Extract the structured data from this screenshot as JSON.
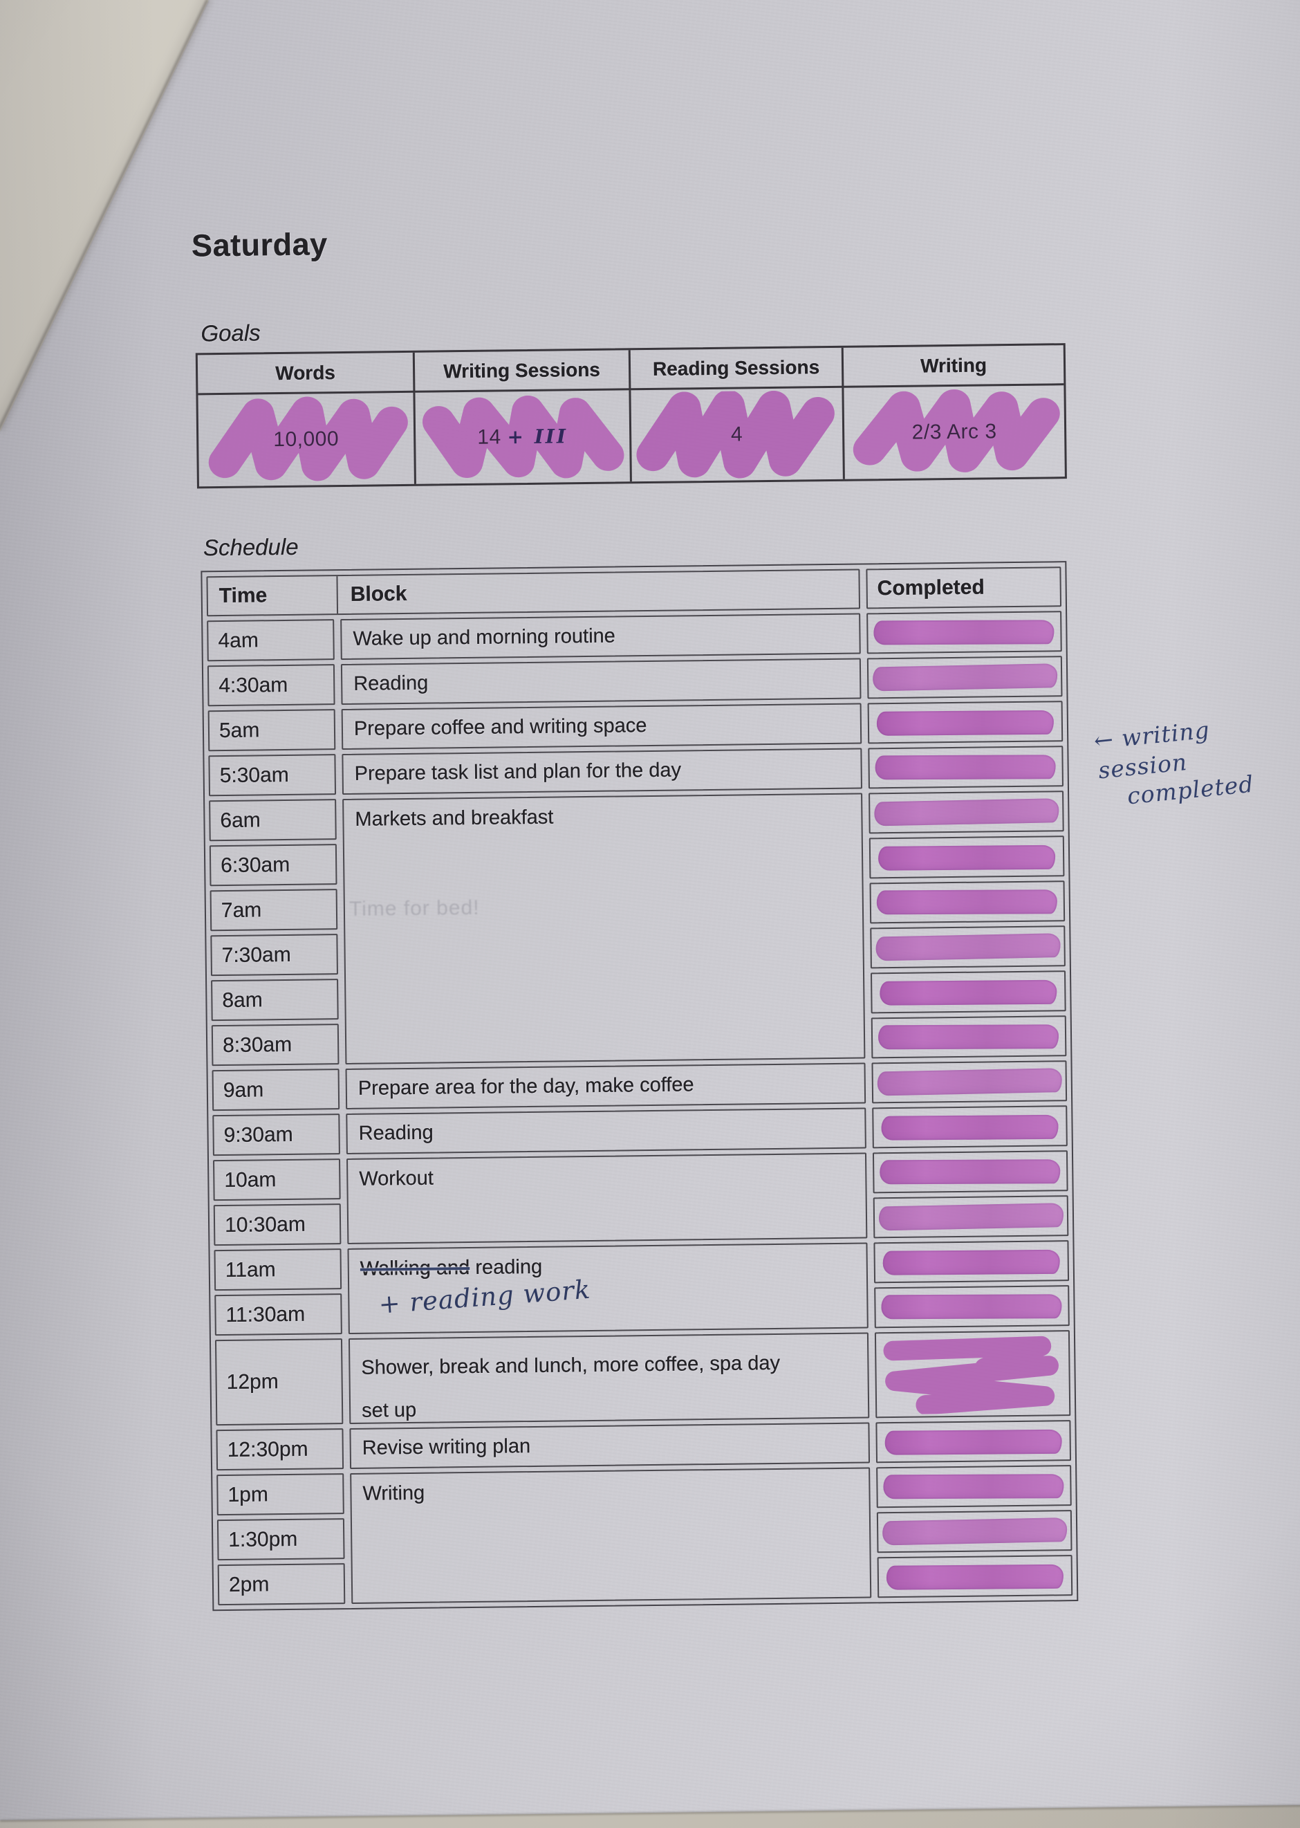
{
  "page": {
    "title": "Saturday",
    "goals": {
      "label": "Goals",
      "columns": [
        {
          "header": "Words",
          "value": "10,000",
          "highlighted": true
        },
        {
          "header": "Writing Sessions",
          "value": "14",
          "extra_tally": "+ III",
          "highlighted": true
        },
        {
          "header": "Reading Sessions",
          "value": "4",
          "highlighted": true
        },
        {
          "header": "Writing",
          "value": "2/3 Arc 3",
          "highlighted": true
        }
      ]
    },
    "schedule": {
      "label": "Schedule",
      "headers": {
        "time": "Time",
        "block": "Block",
        "completed": "Completed"
      },
      "rows": [
        {
          "time": "4am",
          "block": "Wake up and morning routine",
          "span": 1,
          "completed": true
        },
        {
          "time": "4:30am",
          "block": "Reading",
          "span": 1,
          "completed": true
        },
        {
          "time": "5am",
          "block": "Prepare coffee and writing space",
          "span": 1,
          "completed": true
        },
        {
          "time": "5:30am",
          "block": "Prepare task list and plan for the day",
          "span": 1,
          "completed": true
        },
        {
          "time": "6am",
          "block": "Markets and breakfast",
          "span": 6,
          "completed": true
        },
        {
          "time": "6:30am",
          "completed": true
        },
        {
          "time": "7am",
          "completed": true
        },
        {
          "time": "7:30am",
          "completed": true
        },
        {
          "time": "8am",
          "completed": true
        },
        {
          "time": "8:30am",
          "completed": true
        },
        {
          "time": "9am",
          "block": "Prepare area for the day, make coffee",
          "span": 1,
          "completed": true
        },
        {
          "time": "9:30am",
          "block": "Reading",
          "span": 1,
          "completed": true
        },
        {
          "time": "10am",
          "block": "Workout",
          "span": 2,
          "completed": true
        },
        {
          "time": "10:30am",
          "completed": true
        },
        {
          "time": "11am",
          "block_struck": "Walking and",
          "block_rest": "reading",
          "handwritten": "+ reading work",
          "span": 2,
          "completed": true
        },
        {
          "time": "11:30am",
          "completed": true
        },
        {
          "time": "12pm",
          "block": "Shower, break and lunch, more coffee, spa day set up",
          "span": 1,
          "tall": true,
          "mark": "scribble",
          "completed": true
        },
        {
          "time": "12:30pm",
          "block": "Revise writing plan",
          "span": 1,
          "completed": true
        },
        {
          "time": "1pm",
          "block": "Writing",
          "span": 3,
          "completed": true
        },
        {
          "time": "1:30pm",
          "completed": true
        },
        {
          "time": "2pm",
          "completed": true
        }
      ]
    },
    "margin_note": {
      "lines": [
        "← writing",
        "session",
        "completed"
      ]
    },
    "bleed_through_text": "Time for bed!",
    "colors": {
      "highlighter": "#b45ab6",
      "pen_ink": "#2f3a60"
    }
  }
}
